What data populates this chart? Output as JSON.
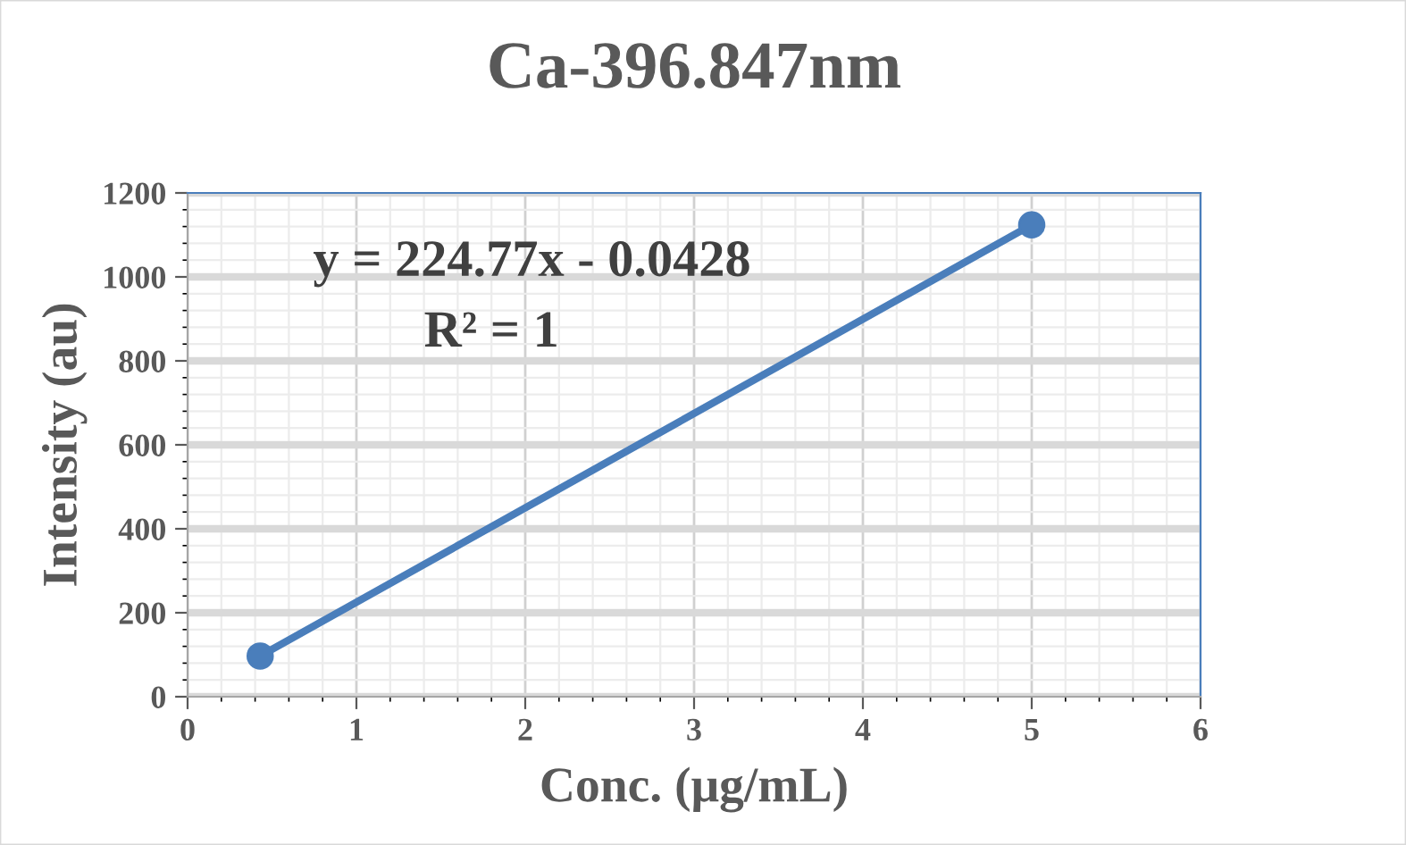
{
  "chart_data": {
    "type": "line",
    "title": "Ca-396.847nm",
    "xlabel": "Conc. (μg/mL)",
    "ylabel": "Intensity (au)",
    "series": [
      {
        "color": "#4a7ebb",
        "x": [
          0.43,
          5
        ],
        "values": [
          97,
          1124
        ]
      }
    ],
    "marker": "circle",
    "line_style": "solid",
    "grid": true,
    "xlim": [
      0,
      6
    ],
    "xticks": [
      0,
      1,
      2,
      3,
      4,
      5,
      6
    ],
    "ylim": [
      0,
      1200
    ],
    "yticks": [
      0,
      200,
      400,
      600,
      800,
      1000,
      1200
    ],
    "annotations": [
      "y = 224.77x - 0.0428",
      "R² = 1"
    ]
  }
}
